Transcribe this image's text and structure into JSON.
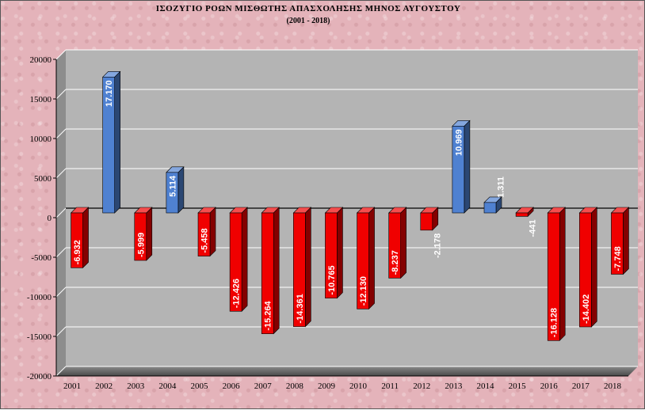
{
  "chart_data": {
    "type": "bar",
    "title": "ΙΣΟΖΥΓΙΟ ΡΟΩΝ ΜΙΣΘΩΤΗΣ ΑΠΑΣΧΟΛΗΣΗΣ ΜΗΝΟΣ  ΑΥΓΟΥΣΤΟΥ",
    "subtitle": "(2001 - 2018)",
    "categories": [
      "2001",
      "2002",
      "2003",
      "2004",
      "2005",
      "2006",
      "2007",
      "2008",
      "2009",
      "2010",
      "2011",
      "2012",
      "2013",
      "2014",
      "2015",
      "2016",
      "2017",
      "2018"
    ],
    "values": [
      -6932,
      17170,
      -5999,
      5114,
      -5458,
      -12426,
      -15264,
      -14361,
      -10765,
      -12130,
      -8237,
      -2178,
      10969,
      1311,
      -441,
      -16128,
      -14402,
      -7748
    ],
    "data_labels": [
      "-6.932",
      "17.170",
      "-5.999",
      "5.114",
      "-5.458",
      "-12.426",
      "-15.264",
      "-14.361",
      "-10.765",
      "-12.130",
      "-8.237",
      "-2.178",
      "10.969",
      "1.311",
      "-441",
      "-16.128",
      "-14.402",
      "-7.748"
    ],
    "ylim": [
      -20000,
      20000
    ],
    "yticks": [
      20000,
      15000,
      10000,
      5000,
      0,
      -5000,
      -10000,
      -15000,
      -20000
    ],
    "ytick_labels": [
      "20000",
      "15000",
      "10000",
      "5000",
      "0",
      "-5000",
      "-10000",
      "-15000",
      "-20000"
    ],
    "grid": true,
    "legend": "none",
    "colors": {
      "positive": "#4f81d1",
      "negative": "#f00000",
      "plot_background": "#b4b4b4",
      "page_background": "#e4b3ba"
    }
  }
}
